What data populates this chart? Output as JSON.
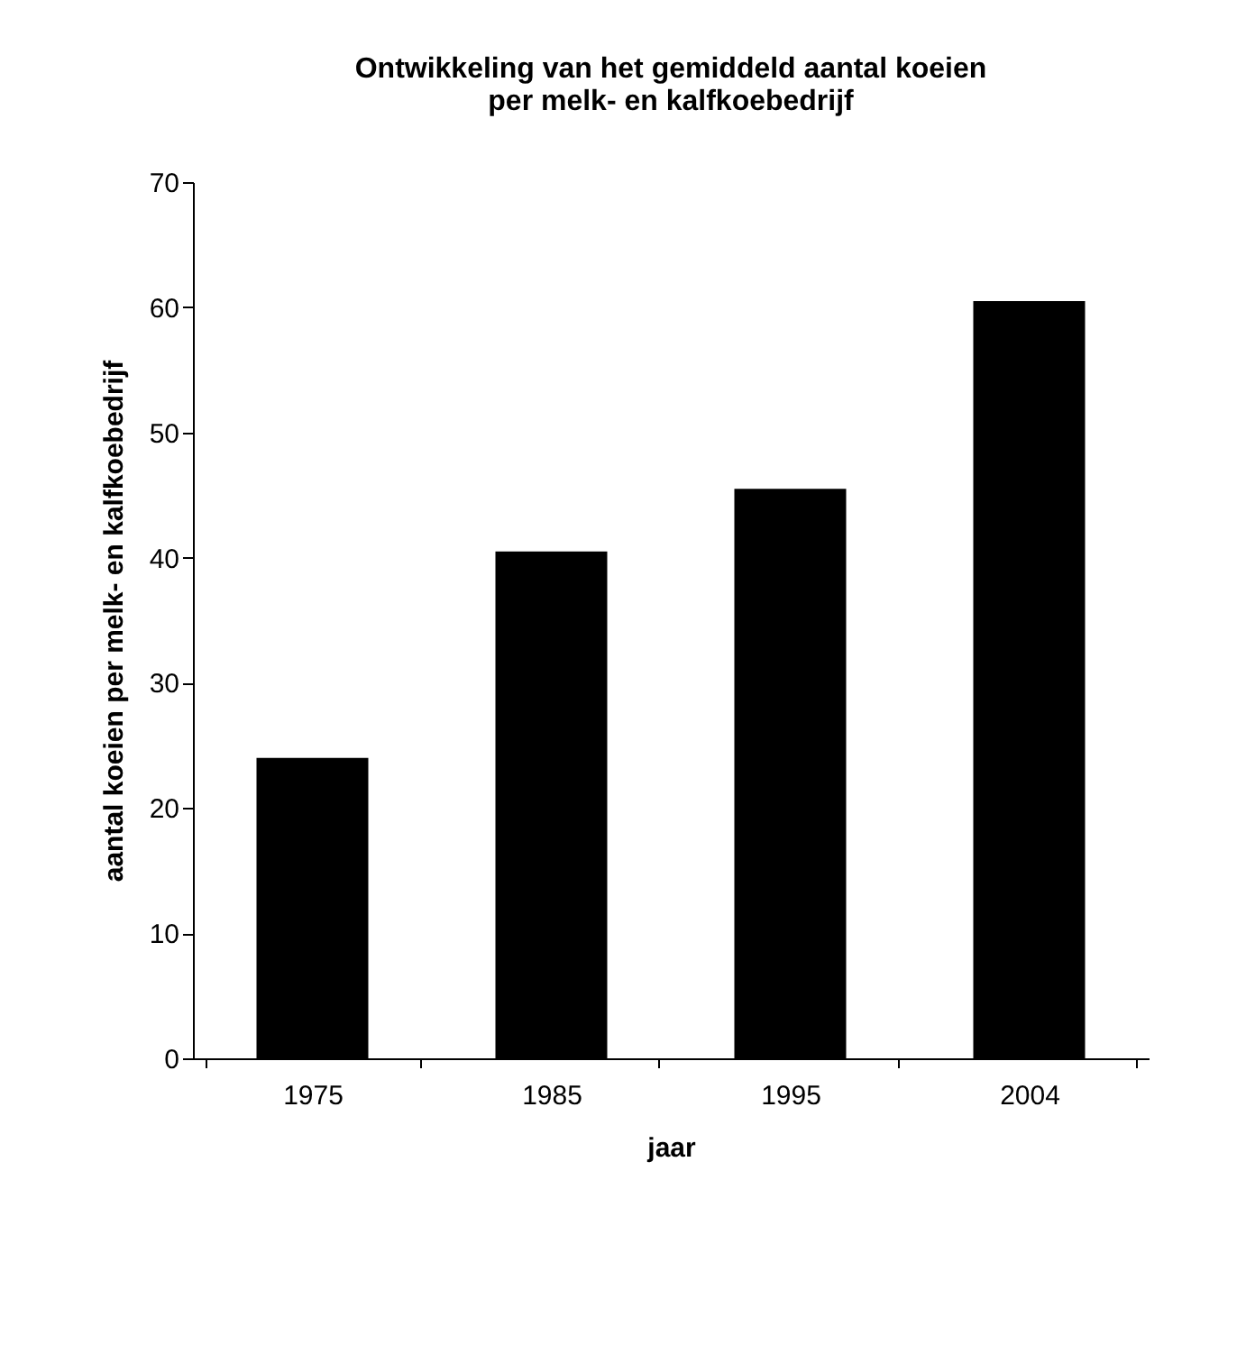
{
  "chart_data": {
    "type": "bar",
    "title": [
      "Ontwikkeling van het gemiddeld aantal koeien",
      "per melk- en kalfkoebedrijf"
    ],
    "xlabel": "jaar",
    "ylabel": "aantal koeien per melk- en kalfkoebedrijf",
    "categories": [
      "1975",
      "1985",
      "1995",
      "2004"
    ],
    "values": [
      24,
      40.5,
      45.5,
      60.5
    ],
    "color": "#000000",
    "ylim": [
      0,
      70
    ],
    "yticks": [
      0,
      10,
      20,
      30,
      40,
      50,
      60,
      70
    ],
    "grid": false
  }
}
